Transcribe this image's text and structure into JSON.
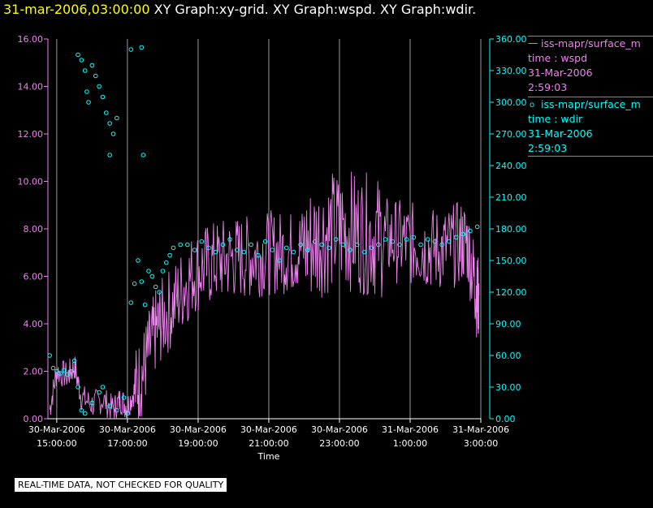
{
  "header": {
    "timestamp": "31-mar-2006,03:00:00",
    "title": "XY Graph:xy-grid.  XY Graph:wspd.  XY Graph:wdir."
  },
  "legend": [
    {
      "prefix": "—",
      "name": "iss-mapr/surface_m",
      "field": "time : wspd",
      "date": "31-Mar-2006",
      "time": "2:59:03",
      "color": "#ee82ee"
    },
    {
      "prefix": "o",
      "name": "iss-mapr/surface_m",
      "field": "time : wdir",
      "date": "31-Mar-2006",
      "time": "2:59:03",
      "color": "#00ffff"
    }
  ],
  "disclaimer": "REAL-TIME DATA, NOT CHECKED FOR QUALITY",
  "chart_data": {
    "type": "line",
    "xlabel": "Time",
    "x_range_hours": [
      14.75,
      27.0
    ],
    "x_ticks": [
      {
        "hours": 15,
        "date": "30-Mar-2006",
        "time": "15:00:00"
      },
      {
        "hours": 17,
        "date": "30-Mar-2006",
        "time": "17:00:00"
      },
      {
        "hours": 19,
        "date": "30-Mar-2006",
        "time": "19:00:00"
      },
      {
        "hours": 21,
        "date": "30-Mar-2006",
        "time": "21:00:00"
      },
      {
        "hours": 23,
        "date": "30-Mar-2006",
        "time": "23:00:00"
      },
      {
        "hours": 25,
        "date": "31-Mar-2006",
        "time": "1:00:00"
      },
      {
        "hours": 27,
        "date": "31-Mar-2006",
        "time": "3:00:00"
      }
    ],
    "y_left": {
      "label": "wspd",
      "range": [
        0,
        16
      ],
      "ticks": [
        "0.00",
        "2.00",
        "4.00",
        "6.00",
        "8.00",
        "10.00",
        "12.00",
        "14.00",
        "16.00"
      ],
      "color": "#ee82ee"
    },
    "y_right": {
      "label": "wdir",
      "range": [
        0,
        360
      ],
      "ticks": [
        "0.00",
        "30.00",
        "60.00",
        "90.00",
        "120.00",
        "150.00",
        "180.00",
        "210.00",
        "240.00",
        "270.00",
        "300.00",
        "330.00",
        "360.00"
      ],
      "color": "#00ffff"
    },
    "grid": true,
    "series": [
      {
        "name": "wspd",
        "style": "line",
        "axis": "left",
        "color": "#ee82ee",
        "points": [
          [
            14.8,
            0.4
          ],
          [
            15.0,
            2.0
          ],
          [
            15.3,
            1.8
          ],
          [
            15.5,
            2.2
          ],
          [
            15.7,
            0.9
          ],
          [
            16.0,
            0.6
          ],
          [
            16.3,
            0.8
          ],
          [
            16.6,
            0.4
          ],
          [
            16.8,
            0.8
          ],
          [
            17.0,
            0.5
          ],
          [
            17.2,
            1.2
          ],
          [
            17.4,
            1.8
          ],
          [
            17.6,
            2.8
          ],
          [
            17.8,
            3.7
          ],
          [
            18.0,
            4.2
          ],
          [
            18.3,
            4.8
          ],
          [
            18.6,
            5.6
          ],
          [
            18.9,
            6.2
          ],
          [
            19.2,
            6.4
          ],
          [
            19.5,
            6.6
          ],
          [
            19.8,
            6.7
          ],
          [
            20.1,
            6.8
          ],
          [
            20.4,
            6.8
          ],
          [
            20.7,
            6.9
          ],
          [
            21.0,
            7.0
          ],
          [
            21.3,
            7.0
          ],
          [
            21.6,
            7.0
          ],
          [
            21.9,
            7.2
          ],
          [
            22.2,
            7.4
          ],
          [
            22.5,
            7.7
          ],
          [
            22.8,
            7.9
          ],
          [
            23.1,
            8.0
          ],
          [
            23.4,
            7.9
          ],
          [
            23.7,
            7.8
          ],
          [
            24.0,
            7.7
          ],
          [
            24.3,
            7.6
          ],
          [
            24.6,
            7.5
          ],
          [
            24.9,
            7.4
          ],
          [
            25.2,
            7.3
          ],
          [
            25.5,
            7.2
          ],
          [
            25.8,
            7.1
          ],
          [
            26.1,
            7.2
          ],
          [
            26.4,
            7.4
          ],
          [
            26.6,
            7.5
          ],
          [
            26.8,
            6.0
          ],
          [
            26.9,
            5.0
          ],
          [
            26.95,
            5.2
          ]
        ]
      },
      {
        "name": "wdir",
        "style": "scatter",
        "axis": "right",
        "color": "#00ffff",
        "points": [
          [
            14.8,
            60
          ],
          [
            14.9,
            48
          ],
          [
            15.0,
            45
          ],
          [
            15.1,
            43
          ],
          [
            15.2,
            46
          ],
          [
            15.3,
            42
          ],
          [
            15.4,
            45
          ],
          [
            15.5,
            55
          ],
          [
            15.6,
            30
          ],
          [
            15.7,
            8
          ],
          [
            15.8,
            5
          ],
          [
            16.0,
            15
          ],
          [
            16.2,
            25
          ],
          [
            16.3,
            30
          ],
          [
            16.5,
            12
          ],
          [
            16.7,
            8
          ],
          [
            16.9,
            20
          ],
          [
            17.0,
            5
          ],
          [
            17.1,
            110
          ],
          [
            17.2,
            128
          ],
          [
            17.3,
            150
          ],
          [
            17.4,
            130
          ],
          [
            17.5,
            108
          ],
          [
            17.6,
            140
          ],
          [
            17.7,
            135
          ],
          [
            17.8,
            125
          ],
          [
            17.9,
            120
          ],
          [
            18.0,
            140
          ],
          [
            18.1,
            148
          ],
          [
            18.2,
            155
          ],
          [
            18.3,
            162
          ],
          [
            18.5,
            165
          ],
          [
            18.7,
            165
          ],
          [
            18.9,
            160
          ],
          [
            19.1,
            168
          ],
          [
            19.3,
            162
          ],
          [
            19.5,
            158
          ],
          [
            19.7,
            165
          ],
          [
            19.9,
            170
          ],
          [
            20.1,
            160
          ],
          [
            20.3,
            158
          ],
          [
            20.5,
            165
          ],
          [
            20.7,
            155
          ],
          [
            20.9,
            168
          ],
          [
            21.1,
            160
          ],
          [
            21.3,
            150
          ],
          [
            21.5,
            162
          ],
          [
            21.7,
            158
          ],
          [
            21.9,
            165
          ],
          [
            22.1,
            160
          ],
          [
            22.3,
            168
          ],
          [
            22.5,
            165
          ],
          [
            22.7,
            162
          ],
          [
            22.9,
            170
          ],
          [
            23.1,
            165
          ],
          [
            23.3,
            160
          ],
          [
            23.5,
            165
          ],
          [
            23.7,
            158
          ],
          [
            23.9,
            162
          ],
          [
            24.1,
            165
          ],
          [
            24.3,
            170
          ],
          [
            24.5,
            168
          ],
          [
            24.7,
            165
          ],
          [
            24.9,
            170
          ],
          [
            25.1,
            172
          ],
          [
            25.3,
            165
          ],
          [
            25.5,
            170
          ],
          [
            25.7,
            168
          ],
          [
            25.9,
            165
          ],
          [
            26.1,
            168
          ],
          [
            26.3,
            172
          ],
          [
            26.5,
            175
          ],
          [
            26.7,
            178
          ],
          [
            26.9,
            182
          ],
          [
            15.6,
            345
          ],
          [
            15.7,
            340
          ],
          [
            15.8,
            330
          ],
          [
            15.85,
            310
          ],
          [
            15.9,
            300
          ],
          [
            16.0,
            335
          ],
          [
            16.1,
            325
          ],
          [
            16.2,
            315
          ],
          [
            16.3,
            305
          ],
          [
            16.4,
            290
          ],
          [
            16.5,
            280
          ],
          [
            16.6,
            270
          ],
          [
            16.7,
            285
          ],
          [
            16.5,
            250
          ],
          [
            17.1,
            350
          ],
          [
            17.4,
            352
          ],
          [
            17.45,
            250
          ]
        ]
      }
    ]
  }
}
